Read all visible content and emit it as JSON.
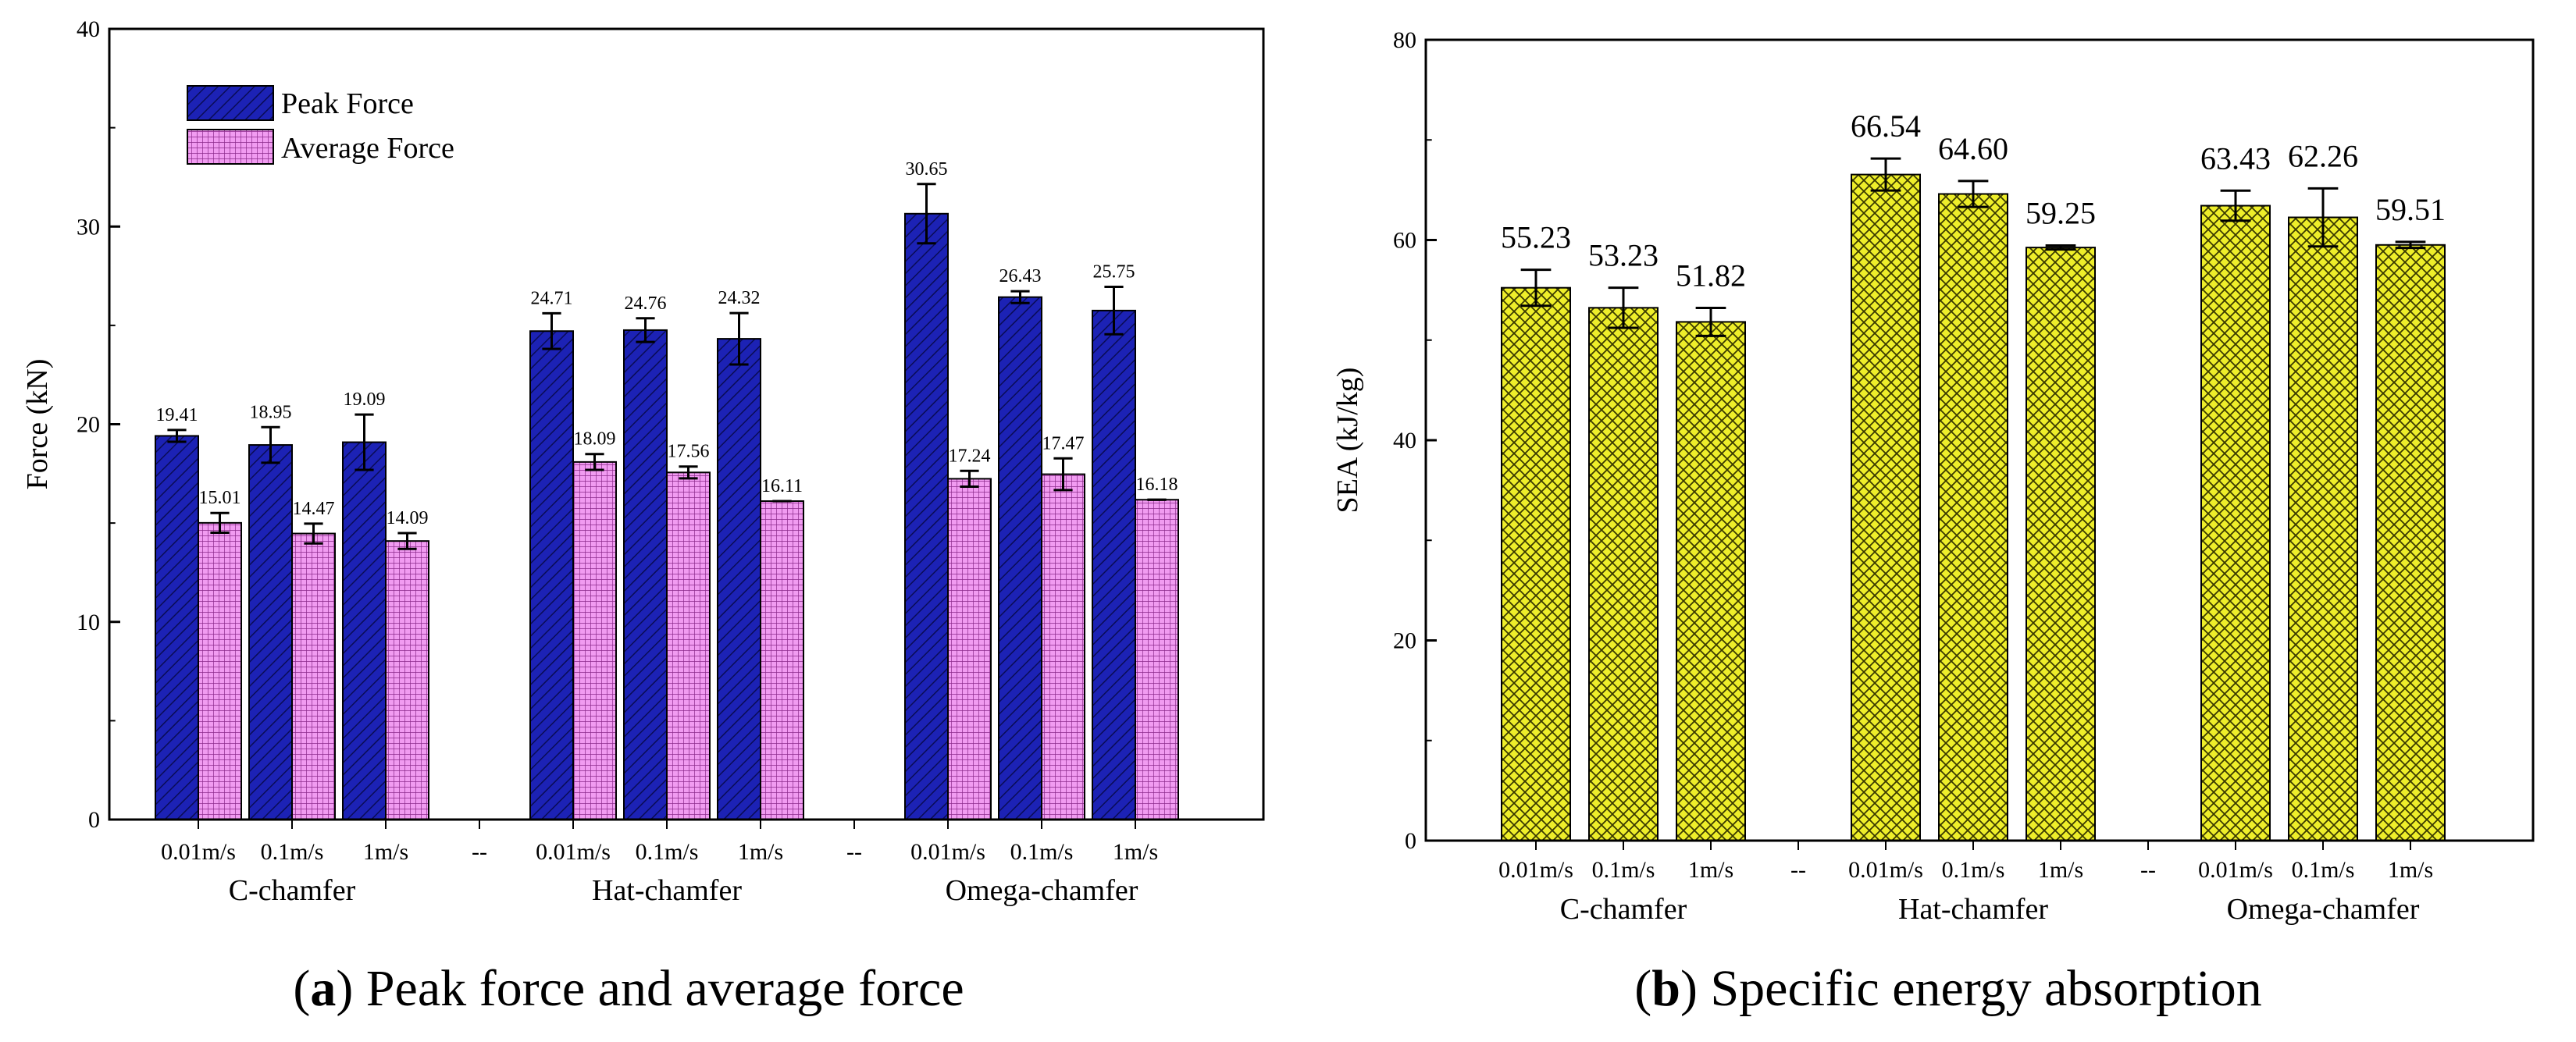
{
  "chart_data": [
    {
      "panel": "a",
      "type": "bar",
      "caption_letter": "a",
      "caption_text": " Peak force and average force",
      "ylabel": "Force (kN)",
      "ylim": [
        0,
        40
      ],
      "yticks": [
        0,
        10,
        20,
        30,
        40
      ],
      "grid": false,
      "legend_position": "top-left",
      "categories": [
        "0.01m/s",
        "0.1m/s",
        "1m/s",
        "--",
        "0.01m/s",
        "0.1m/s",
        "1m/s",
        "--",
        "0.01m/s",
        "0.1m/s",
        "1m/s"
      ],
      "groups": [
        "C-chamfer",
        "Hat-chamfer",
        "Omega-chamfer"
      ],
      "separator_label": "--",
      "series": [
        {
          "name": "Peak Force",
          "color": "#1c22b5",
          "pattern": "diagonal-hatch",
          "values": [
            19.41,
            18.95,
            19.09,
            null,
            24.71,
            24.76,
            24.32,
            null,
            30.65,
            26.43,
            25.75
          ],
          "labels": [
            "19.41",
            "18.95",
            "19.09",
            "",
            "24.71",
            "24.76",
            "24.32",
            "",
            "30.65",
            "26.43",
            "25.75"
          ],
          "errors": [
            0.3,
            0.9,
            1.4,
            null,
            0.9,
            0.6,
            1.3,
            null,
            1.5,
            0.3,
            1.2
          ]
        },
        {
          "name": "Average Force",
          "color": "#ee88ee",
          "pattern": "cross-grid",
          "values": [
            15.01,
            14.47,
            14.09,
            null,
            18.09,
            17.56,
            16.11,
            null,
            17.24,
            17.47,
            16.18
          ],
          "labels": [
            "15.01",
            "14.47",
            "14.09",
            "",
            "18.09",
            "17.56",
            "16.11",
            "",
            "17.24",
            "17.47",
            "16.18"
          ],
          "errors": [
            0.5,
            0.5,
            0.4,
            null,
            0.4,
            0.3,
            0.0,
            null,
            0.4,
            0.8,
            0.0
          ]
        }
      ]
    },
    {
      "panel": "b",
      "type": "bar",
      "caption_letter": "b",
      "caption_text": " Specific energy absorption",
      "ylabel": "SEA (kJ/kg)",
      "ylim": [
        0,
        80
      ],
      "yticks": [
        0,
        20,
        40,
        60,
        80
      ],
      "grid": false,
      "categories": [
        "0.01m/s",
        "0.1m/s",
        "1m/s",
        "--",
        "0.01m/s",
        "0.1m/s",
        "1m/s",
        "--",
        "0.01m/s",
        "0.1m/s",
        "1m/s"
      ],
      "groups": [
        "C-chamfer",
        "Hat-chamfer",
        "Omega-chamfer"
      ],
      "separator_label": "--",
      "series": [
        {
          "color": "#eeee22",
          "pattern": "crosshatch",
          "values": [
            55.23,
            53.23,
            51.82,
            null,
            66.54,
            64.6,
            59.25,
            null,
            63.43,
            62.26,
            59.51
          ],
          "labels": [
            "55.23",
            "53.23",
            "51.82",
            "",
            "66.54",
            "64.60",
            "59.25",
            "",
            "63.43",
            "62.26",
            "59.51"
          ],
          "errors": [
            1.8,
            2.0,
            1.4,
            null,
            1.6,
            1.3,
            0.2,
            null,
            1.5,
            2.9,
            0.3
          ]
        }
      ]
    }
  ]
}
